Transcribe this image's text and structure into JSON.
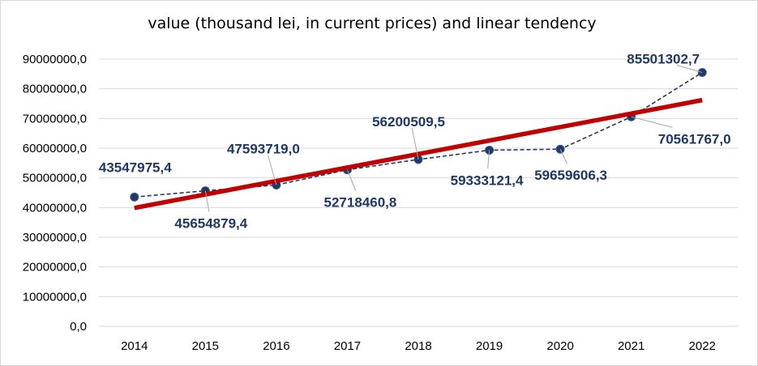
{
  "chart_data": {
    "type": "line",
    "title": "value (thousand lei, in current prices) and linear tendency",
    "categories": [
      "2014",
      "2015",
      "2016",
      "2017",
      "2018",
      "2019",
      "2020",
      "2021",
      "2022"
    ],
    "series": [
      {
        "style": "dashed-with-markers",
        "color": "#1f3864",
        "values": [
          43547975.4,
          45654879.4,
          47593719.0,
          52718460.8,
          56200509.5,
          59333121.4,
          59659606.3,
          70561767.0,
          85501302.7
        ],
        "labels": [
          "43547975,4",
          "45654879,4",
          "47593719,0",
          "52718460,8",
          "56200509,5",
          "59333121,4",
          "59659606,3",
          "70561767,0",
          "85501302,7"
        ]
      },
      {
        "style": "linear-trend",
        "color": "#c00000",
        "values": [
          39870000,
          44410000,
          48950000,
          53490000,
          58030000,
          62570000,
          67110000,
          71650000,
          76190000
        ]
      }
    ],
    "y_ticks": [
      "0,0",
      "10000000,0",
      "20000000,0",
      "30000000,0",
      "40000000,0",
      "50000000,0",
      "60000000,0",
      "70000000,0",
      "80000000,0",
      "90000000,0"
    ],
    "ylim": [
      0,
      90000000
    ],
    "grid": true,
    "legend": "none",
    "colors": {
      "grid": "#d9d9d9",
      "label": "#1f3864",
      "leader": "#a6a6a6"
    }
  }
}
